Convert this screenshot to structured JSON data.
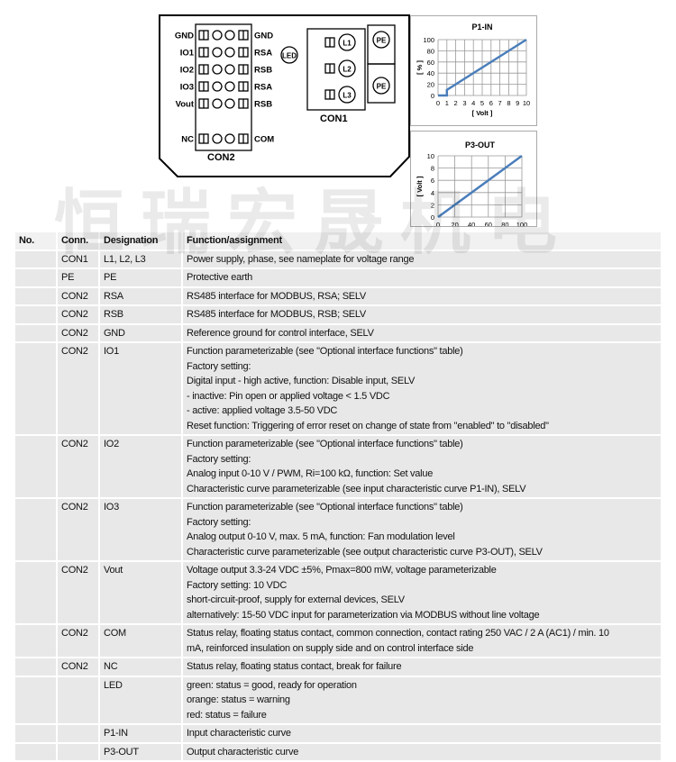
{
  "diagram": {
    "left_labels": [
      "GND",
      "IO1",
      "IO2",
      "IO3",
      "Vout",
      "NC"
    ],
    "right_labels": [
      "GND",
      "RSA",
      "RSB",
      "RSA",
      "RSB",
      "COM"
    ],
    "con2_label": "CON2",
    "con1_label": "CON1",
    "led_label": "LED",
    "con1_terminals": [
      "L1",
      "L2",
      "L3"
    ],
    "pe_terminals": [
      "PE",
      "PE"
    ]
  },
  "watermark": "恒瑞宏晟机电",
  "chart_data": [
    {
      "type": "line",
      "title": "P1-IN",
      "xlabel": "[ Volt ]",
      "ylabel": "[ % ]",
      "xlim": [
        0,
        10
      ],
      "ylim": [
        0,
        100
      ],
      "grid": true,
      "xticks": [
        0,
        1,
        2,
        3,
        4,
        5,
        6,
        7,
        8,
        9,
        10
      ],
      "yticks": [
        0,
        20,
        40,
        60,
        80,
        100
      ],
      "series": [
        {
          "x": [
            0,
            1,
            1,
            10
          ],
          "y": [
            0,
            0,
            10,
            100
          ],
          "color": "#4a7ebb"
        }
      ]
    },
    {
      "type": "line",
      "title": "P3-OUT",
      "xlabel": "[ % ]",
      "ylabel": "[ Volt ]",
      "xlim": [
        0,
        100
      ],
      "ylim": [
        0,
        10
      ],
      "grid": true,
      "xticks": [
        0,
        20,
        40,
        60,
        80,
        100
      ],
      "yticks": [
        0,
        2,
        4,
        6,
        8,
        10
      ],
      "series": [
        {
          "x": [
            0,
            100
          ],
          "y": [
            0,
            10
          ],
          "color": "#4a7ebb"
        }
      ]
    }
  ],
  "table": {
    "headers": [
      "No.",
      "Conn.",
      "Designation",
      "Function/assignment"
    ],
    "rows": [
      {
        "no": "",
        "conn": "CON1",
        "des": "L1, L2, L3",
        "func": [
          "Power supply, phase, see nameplate for voltage range"
        ]
      },
      {
        "no": "",
        "conn": "PE",
        "des": "PE",
        "func": [
          "Protective earth"
        ]
      },
      {
        "no": "",
        "conn": "CON2",
        "des": "RSA",
        "func": [
          "RS485 interface for MODBUS, RSA; SELV"
        ]
      },
      {
        "no": "",
        "conn": "CON2",
        "des": "RSB",
        "func": [
          "RS485 interface for MODBUS, RSB; SELV"
        ]
      },
      {
        "no": "",
        "conn": "CON2",
        "des": "GND",
        "func": [
          "Reference ground for control interface, SELV"
        ]
      },
      {
        "no": "",
        "conn": "CON2",
        "des": "IO1",
        "func": [
          "Function parameterizable (see \"Optional interface functions\" table)",
          "Factory setting:",
          "Digital input - high active, function: Disable input, SELV",
          "- inactive: Pin open or applied voltage < 1.5 VDC",
          "- active: applied voltage 3.5-50 VDC",
          "Reset function: Triggering of error reset on change of state from \"enabled\" to \"disabled\""
        ]
      },
      {
        "no": "",
        "conn": "CON2",
        "des": "IO2",
        "func": [
          "Function parameterizable (see \"Optional interface functions\" table)",
          "Factory setting:",
          "Analog input 0-10 V / PWM, Ri=100 kΩ, function: Set value",
          "Characteristic curve parameterizable (see input characteristic curve P1-IN), SELV"
        ]
      },
      {
        "no": "",
        "conn": "CON2",
        "des": "IO3",
        "func": [
          "Function parameterizable (see \"Optional interface functions\" table)",
          "Factory setting:",
          "Analog output 0-10 V, max. 5 mA, function: Fan modulation level",
          "Characteristic curve parameterizable (see output characteristic curve P3-OUT), SELV"
        ]
      },
      {
        "no": "",
        "conn": "CON2",
        "des": "Vout",
        "func": [
          "Voltage output 3.3-24 VDC ±5%, Pmax=800 mW, voltage parameterizable",
          "Factory setting: 10 VDC",
          "short-circuit-proof, supply for external devices, SELV",
          "alternatively: 15-50 VDC input for parameterization via MODBUS without line voltage"
        ]
      },
      {
        "no": "",
        "conn": "CON2",
        "des": "COM",
        "func": [
          "Status relay, floating status contact, common connection, contact rating 250 VAC / 2 A (AC1) / min. 10",
          "mA, reinforced insulation on supply side and on control interface side"
        ]
      },
      {
        "no": "",
        "conn": "CON2",
        "des": "NC",
        "func": [
          "Status relay, floating status contact, break for failure"
        ]
      },
      {
        "no": "",
        "conn": "",
        "des": "LED",
        "func": [
          "green: status = good, ready for operation",
          "orange: status = warning",
          "red: status = failure"
        ]
      },
      {
        "no": "",
        "conn": "",
        "des": "P1-IN",
        "func": [
          "Input characteristic curve"
        ]
      },
      {
        "no": "",
        "conn": "",
        "des": "P3-OUT",
        "func": [
          "Output characteristic curve"
        ]
      }
    ]
  }
}
